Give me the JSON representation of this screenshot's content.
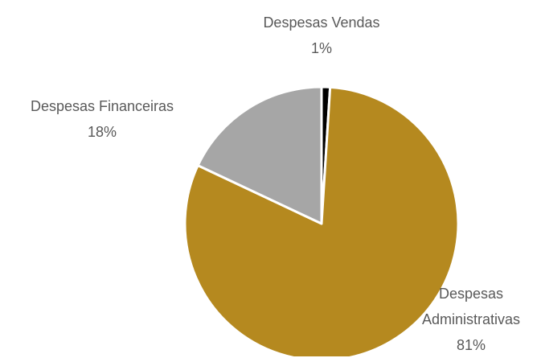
{
  "chart_data": {
    "type": "pie",
    "categories": [
      "Despesas Vendas",
      "Despesas Administrativas",
      "Despesas Financeiras"
    ],
    "values": [
      1,
      81,
      18
    ],
    "value_labels": [
      "1%",
      "81%",
      "18%"
    ],
    "colors": [
      "#000000",
      "#b5891f",
      "#a6a6a6"
    ]
  }
}
